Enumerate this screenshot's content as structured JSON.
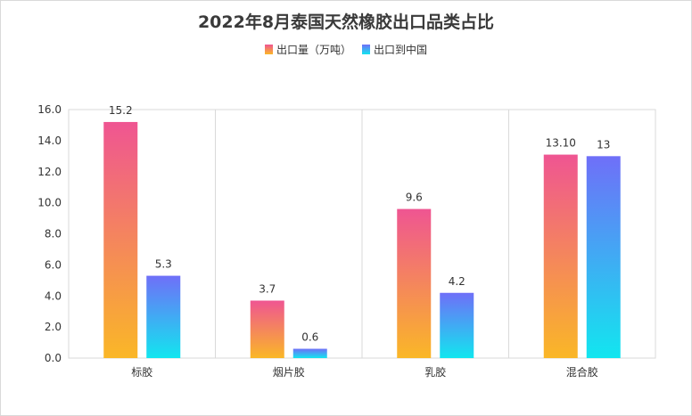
{
  "chart_data": {
    "type": "bar",
    "title": "2022年8月泰国天然橡胶出口品类占比",
    "categories": [
      "标胶",
      "烟片胶",
      "乳胶",
      "混合胶"
    ],
    "series": [
      {
        "name": "出口量（万吨）",
        "values": [
          15.2,
          3.7,
          9.6,
          13.1
        ],
        "labels": [
          "15.2",
          "3.7",
          "9.6",
          "13.10"
        ],
        "color_top": "#ef5592",
        "color_bottom": "#fab727"
      },
      {
        "name": "出口到中国",
        "values": [
          5.3,
          0.6,
          4.2,
          13
        ],
        "labels": [
          "5.3",
          "0.6",
          "4.2",
          "13"
        ],
        "color_top": "#6f6ff8",
        "color_bottom": "#12e6ef"
      }
    ],
    "ylim": [
      0,
      16
    ],
    "yticks": [
      "0.0",
      "2.0",
      "4.0",
      "6.0",
      "8.0",
      "10.0",
      "12.0",
      "14.0",
      "16.0"
    ],
    "grid": true,
    "legend_position": "top-center"
  }
}
